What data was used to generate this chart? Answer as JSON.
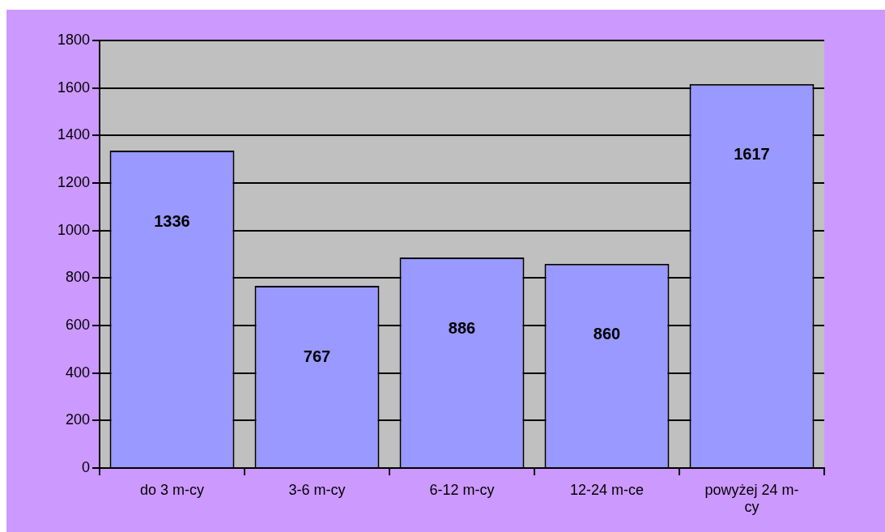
{
  "chart_data": {
    "type": "bar",
    "categories": [
      "do 3 m-cy",
      "3-6 m-cy",
      "6-12 m-cy",
      "12-24 m-ce",
      "powyżej 24 m-cy"
    ],
    "values": [
      1336,
      767,
      886,
      860,
      1617
    ],
    "color": "#9999ff",
    "ylim": [
      0,
      1800
    ],
    "yticks": [
      0,
      200,
      400,
      600,
      800,
      1000,
      1200,
      1400,
      1600,
      1800
    ],
    "grid": "y",
    "data_labels": true
  }
}
